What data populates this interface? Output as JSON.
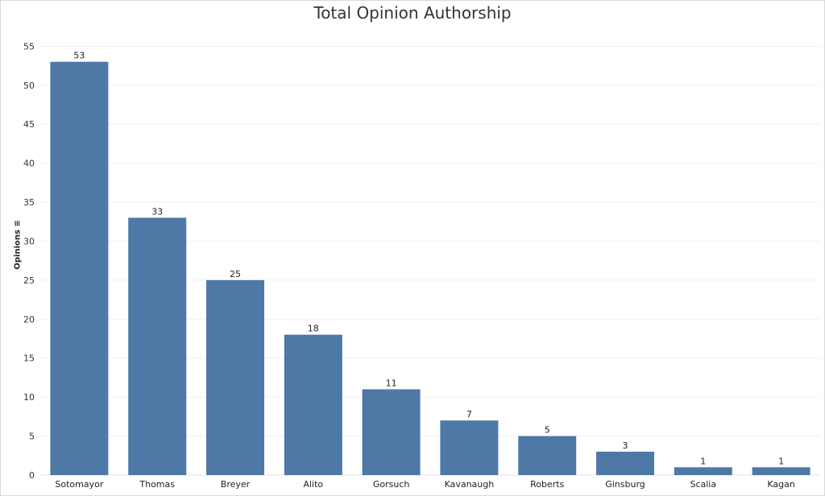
{
  "chart_data": {
    "type": "bar",
    "title": "Total Opinion Authorship",
    "xlabel": "",
    "ylabel": "Opinions",
    "categories": [
      "Sotomayor",
      "Thomas",
      "Breyer",
      "Alito",
      "Gorsuch",
      "Kavanaugh",
      "Roberts",
      "Ginsburg",
      "Scalia",
      "Kagan"
    ],
    "values": [
      53,
      33,
      25,
      18,
      11,
      7,
      5,
      3,
      1,
      1
    ],
    "yticks": [
      0,
      5,
      10,
      15,
      20,
      25,
      30,
      35,
      40,
      45,
      50,
      55
    ],
    "ylim": [
      0,
      57
    ],
    "grid": true,
    "bar_color": "#4e79a7",
    "data_labels": true
  }
}
